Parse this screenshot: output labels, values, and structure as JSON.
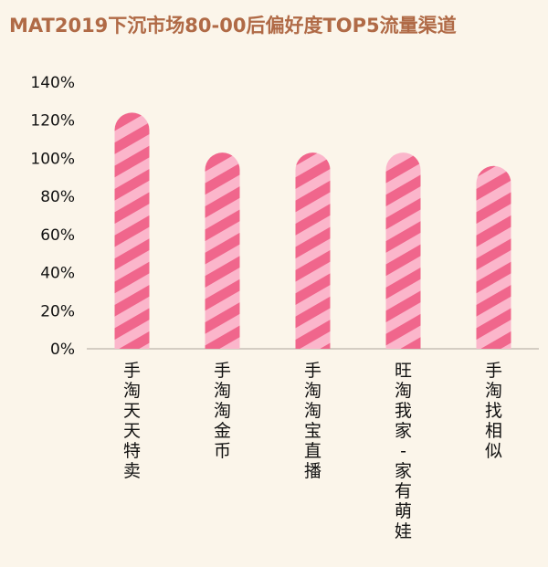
{
  "title": "MAT2019下沉市场80-00后偏好度TOP5流量渠道",
  "colors": {
    "stripe_dark": "#f0668c",
    "stripe_light": "#fbb6cb",
    "title": "#b06a46",
    "background": "#fbf5ea"
  },
  "chart_data": {
    "type": "bar",
    "categories": [
      "手淘天天特卖",
      "手淘淘金币",
      "手淘淘宝直播",
      "旺淘我家-家有萌娃",
      "手淘找相似"
    ],
    "values": [
      124,
      103,
      103,
      103,
      96
    ],
    "unit": "%",
    "ylim": [
      0,
      140
    ],
    "yticks": [
      0,
      20,
      40,
      60,
      80,
      100,
      120,
      140
    ],
    "ytick_labels": [
      "0%",
      "20%",
      "40%",
      "60%",
      "80%",
      "100%",
      "120%",
      "140%"
    ],
    "grid": false,
    "legend": "none"
  }
}
